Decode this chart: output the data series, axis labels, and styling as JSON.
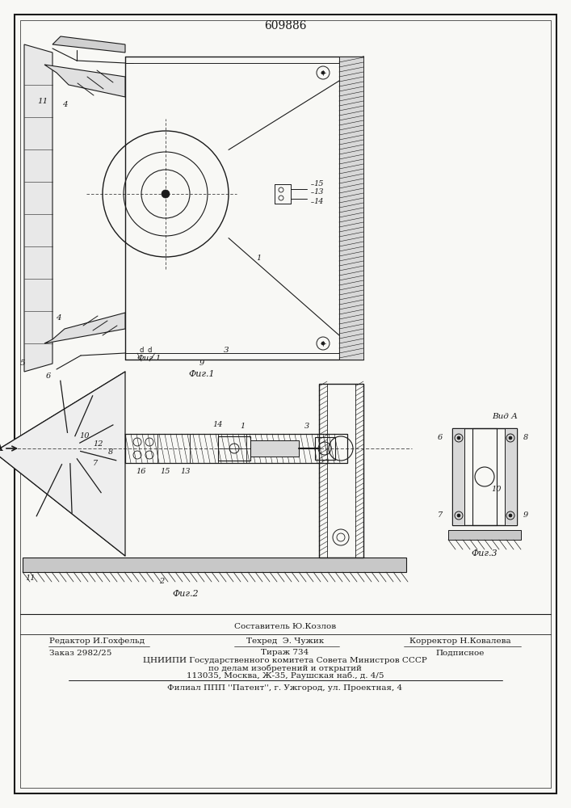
{
  "title_number": "609886",
  "background_color": "#f8f8f5",
  "line_color": "#1a1a1a",
  "fig_width": 7.07,
  "fig_height": 10.0,
  "footer": {
    "sostavitel": "Составитель Ю.Козлов",
    "redaktor": "Редактор И.Гохфельд",
    "tehred": "Техред  Э. Чужик",
    "korrektor": "Корректор Н.Ковалева",
    "zakaz": "Заказ 2982/25",
    "tirazh": "Тираж 734",
    "podpisnoe": "Подписное",
    "cnipi1": "ЦНИИПИ Государственного комитета Совета Министров СССР",
    "cnipi2": "по делам изобретений и открытий",
    "address": "113035, Москва, Ж-35, Раушская наб., д. 4/5",
    "filial": "Филиал ППП ''Патент'', г. Ужгород, ул. Проектная, 4"
  },
  "fig1_caption": "Фиг.1",
  "fig2_caption": "Фиг.2",
  "fig3_caption": "Фиг.3",
  "vid_a": "Вид А"
}
